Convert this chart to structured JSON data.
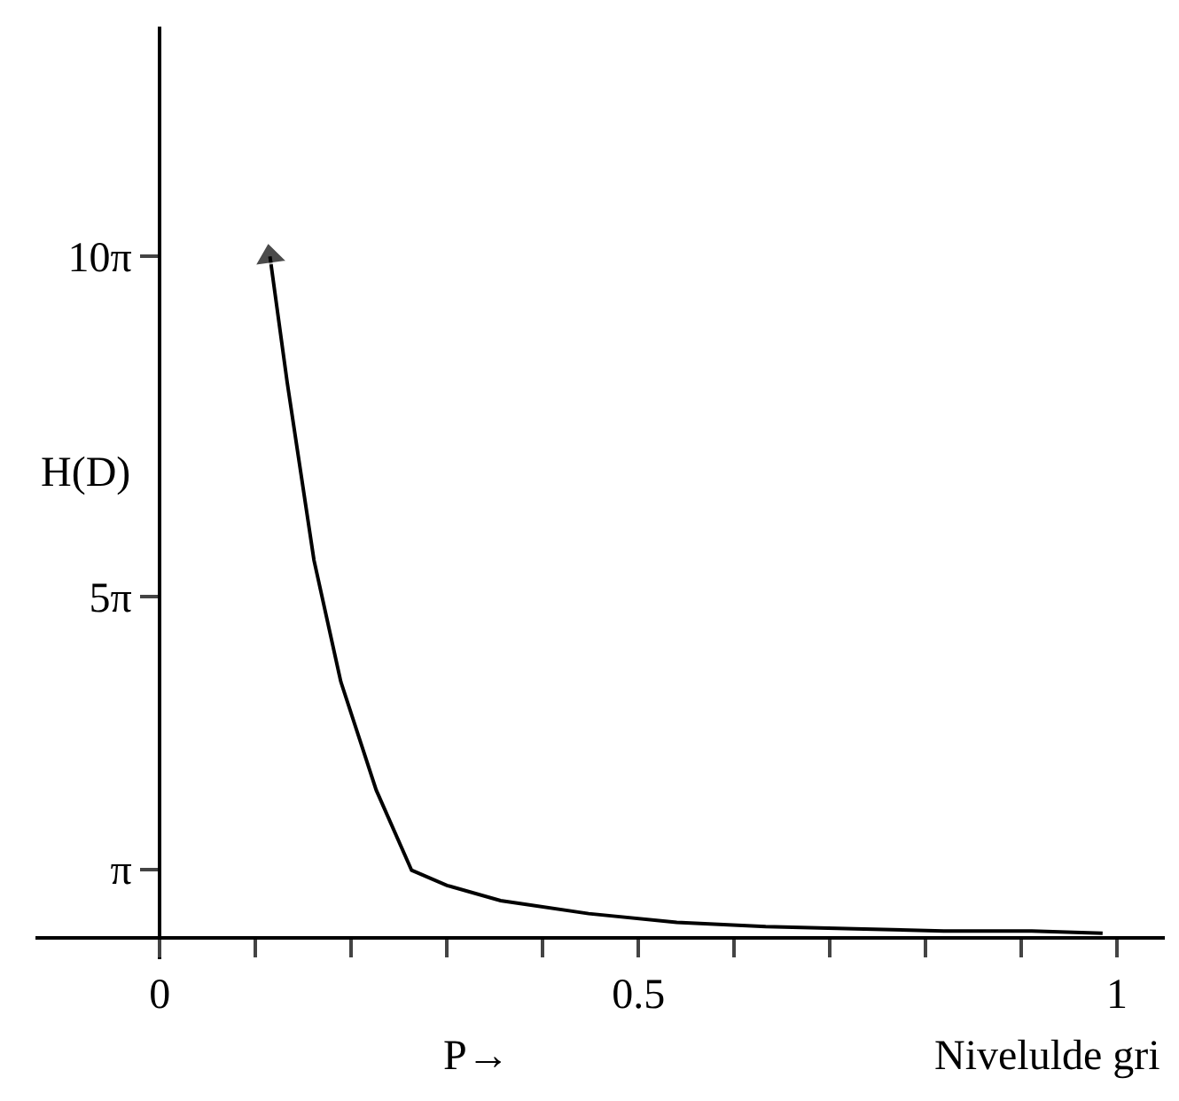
{
  "chart_data": {
    "type": "line",
    "xlabel": "P→",
    "ylabel": "H(D)",
    "annotations": [
      "Nivelulde gri"
    ],
    "x": [
      0.115,
      0.133,
      0.161,
      0.189,
      0.226,
      0.263,
      0.3,
      0.356,
      0.448,
      0.54,
      0.633,
      0.726,
      0.819,
      0.911,
      0.985
    ],
    "series": [
      {
        "color": "#000000",
        "values": [
          31.4,
          25.6,
          17.4,
          11.8,
          6.8,
          3.1,
          2.4,
          1.7,
          1.1,
          0.7,
          0.5,
          0.4,
          0.3,
          0.3,
          0.2
        ]
      }
    ],
    "xlim": [
      -0.13,
      1.05
    ],
    "ylim": [
      -1,
      42
    ],
    "xticks": [
      0,
      {
        "value": 0.1,
        "label": null
      },
      {
        "value": 0.2,
        "label": null
      },
      {
        "value": 0.3,
        "label": null
      },
      {
        "value": 0.4,
        "label": null
      },
      0.5,
      {
        "value": 0.6,
        "label": null
      },
      {
        "value": 0.7,
        "label": null
      },
      {
        "value": 0.8,
        "label": null
      },
      {
        "value": 0.9,
        "label": null
      },
      1
    ],
    "yticks": [
      {
        "value": 3.1416,
        "label": "π"
      },
      {
        "value": 15.708,
        "label": "5π"
      },
      {
        "value": 31.416,
        "label": "10π"
      }
    ],
    "grid": false,
    "legend": false,
    "marker": "none",
    "line_style": "solid"
  }
}
